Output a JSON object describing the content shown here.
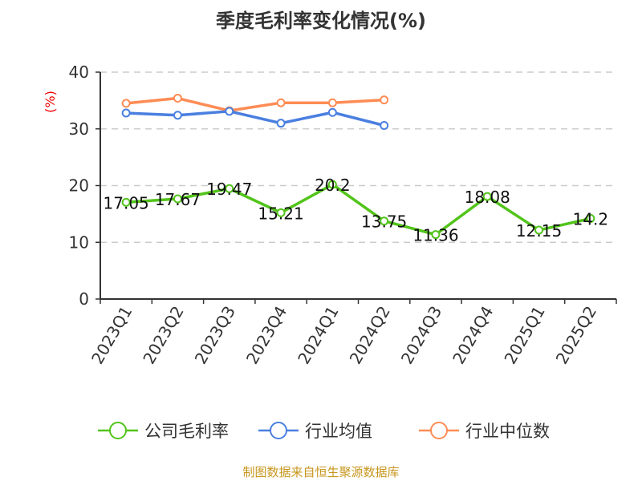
{
  "chart_data": {
    "type": "line",
    "title": "季度毛利率变化情况(%)",
    "ylabel": "(%)",
    "xlabel": "",
    "ylim": [
      0,
      40
    ],
    "yticks": [
      0,
      10,
      20,
      30,
      40
    ],
    "grid": true,
    "legend_position": "bottom",
    "categories": [
      "2023Q1",
      "2023Q2",
      "2023Q3",
      "2023Q4",
      "2024Q1",
      "2024Q2",
      "2024Q3",
      "2024Q4",
      "2025Q1",
      "2025Q2"
    ],
    "series": [
      {
        "name": "公司毛利率",
        "color": "#52c41a",
        "labels": true,
        "values": [
          17.05,
          17.67,
          19.47,
          15.21,
          20.2,
          13.75,
          11.36,
          18.08,
          12.15,
          14.2
        ]
      },
      {
        "name": "行业均值",
        "color": "#4a7fe0",
        "labels": false,
        "values": [
          32.8,
          32.4,
          33.1,
          31.0,
          32.9,
          30.6,
          null,
          null,
          null,
          null
        ]
      },
      {
        "name": "行业中位数",
        "color": "#ff8c55",
        "labels": false,
        "values": [
          34.5,
          35.4,
          33.2,
          34.6,
          34.6,
          35.1,
          null,
          null,
          null,
          null
        ]
      }
    ]
  },
  "source": "制图数据来自恒生聚源数据库"
}
